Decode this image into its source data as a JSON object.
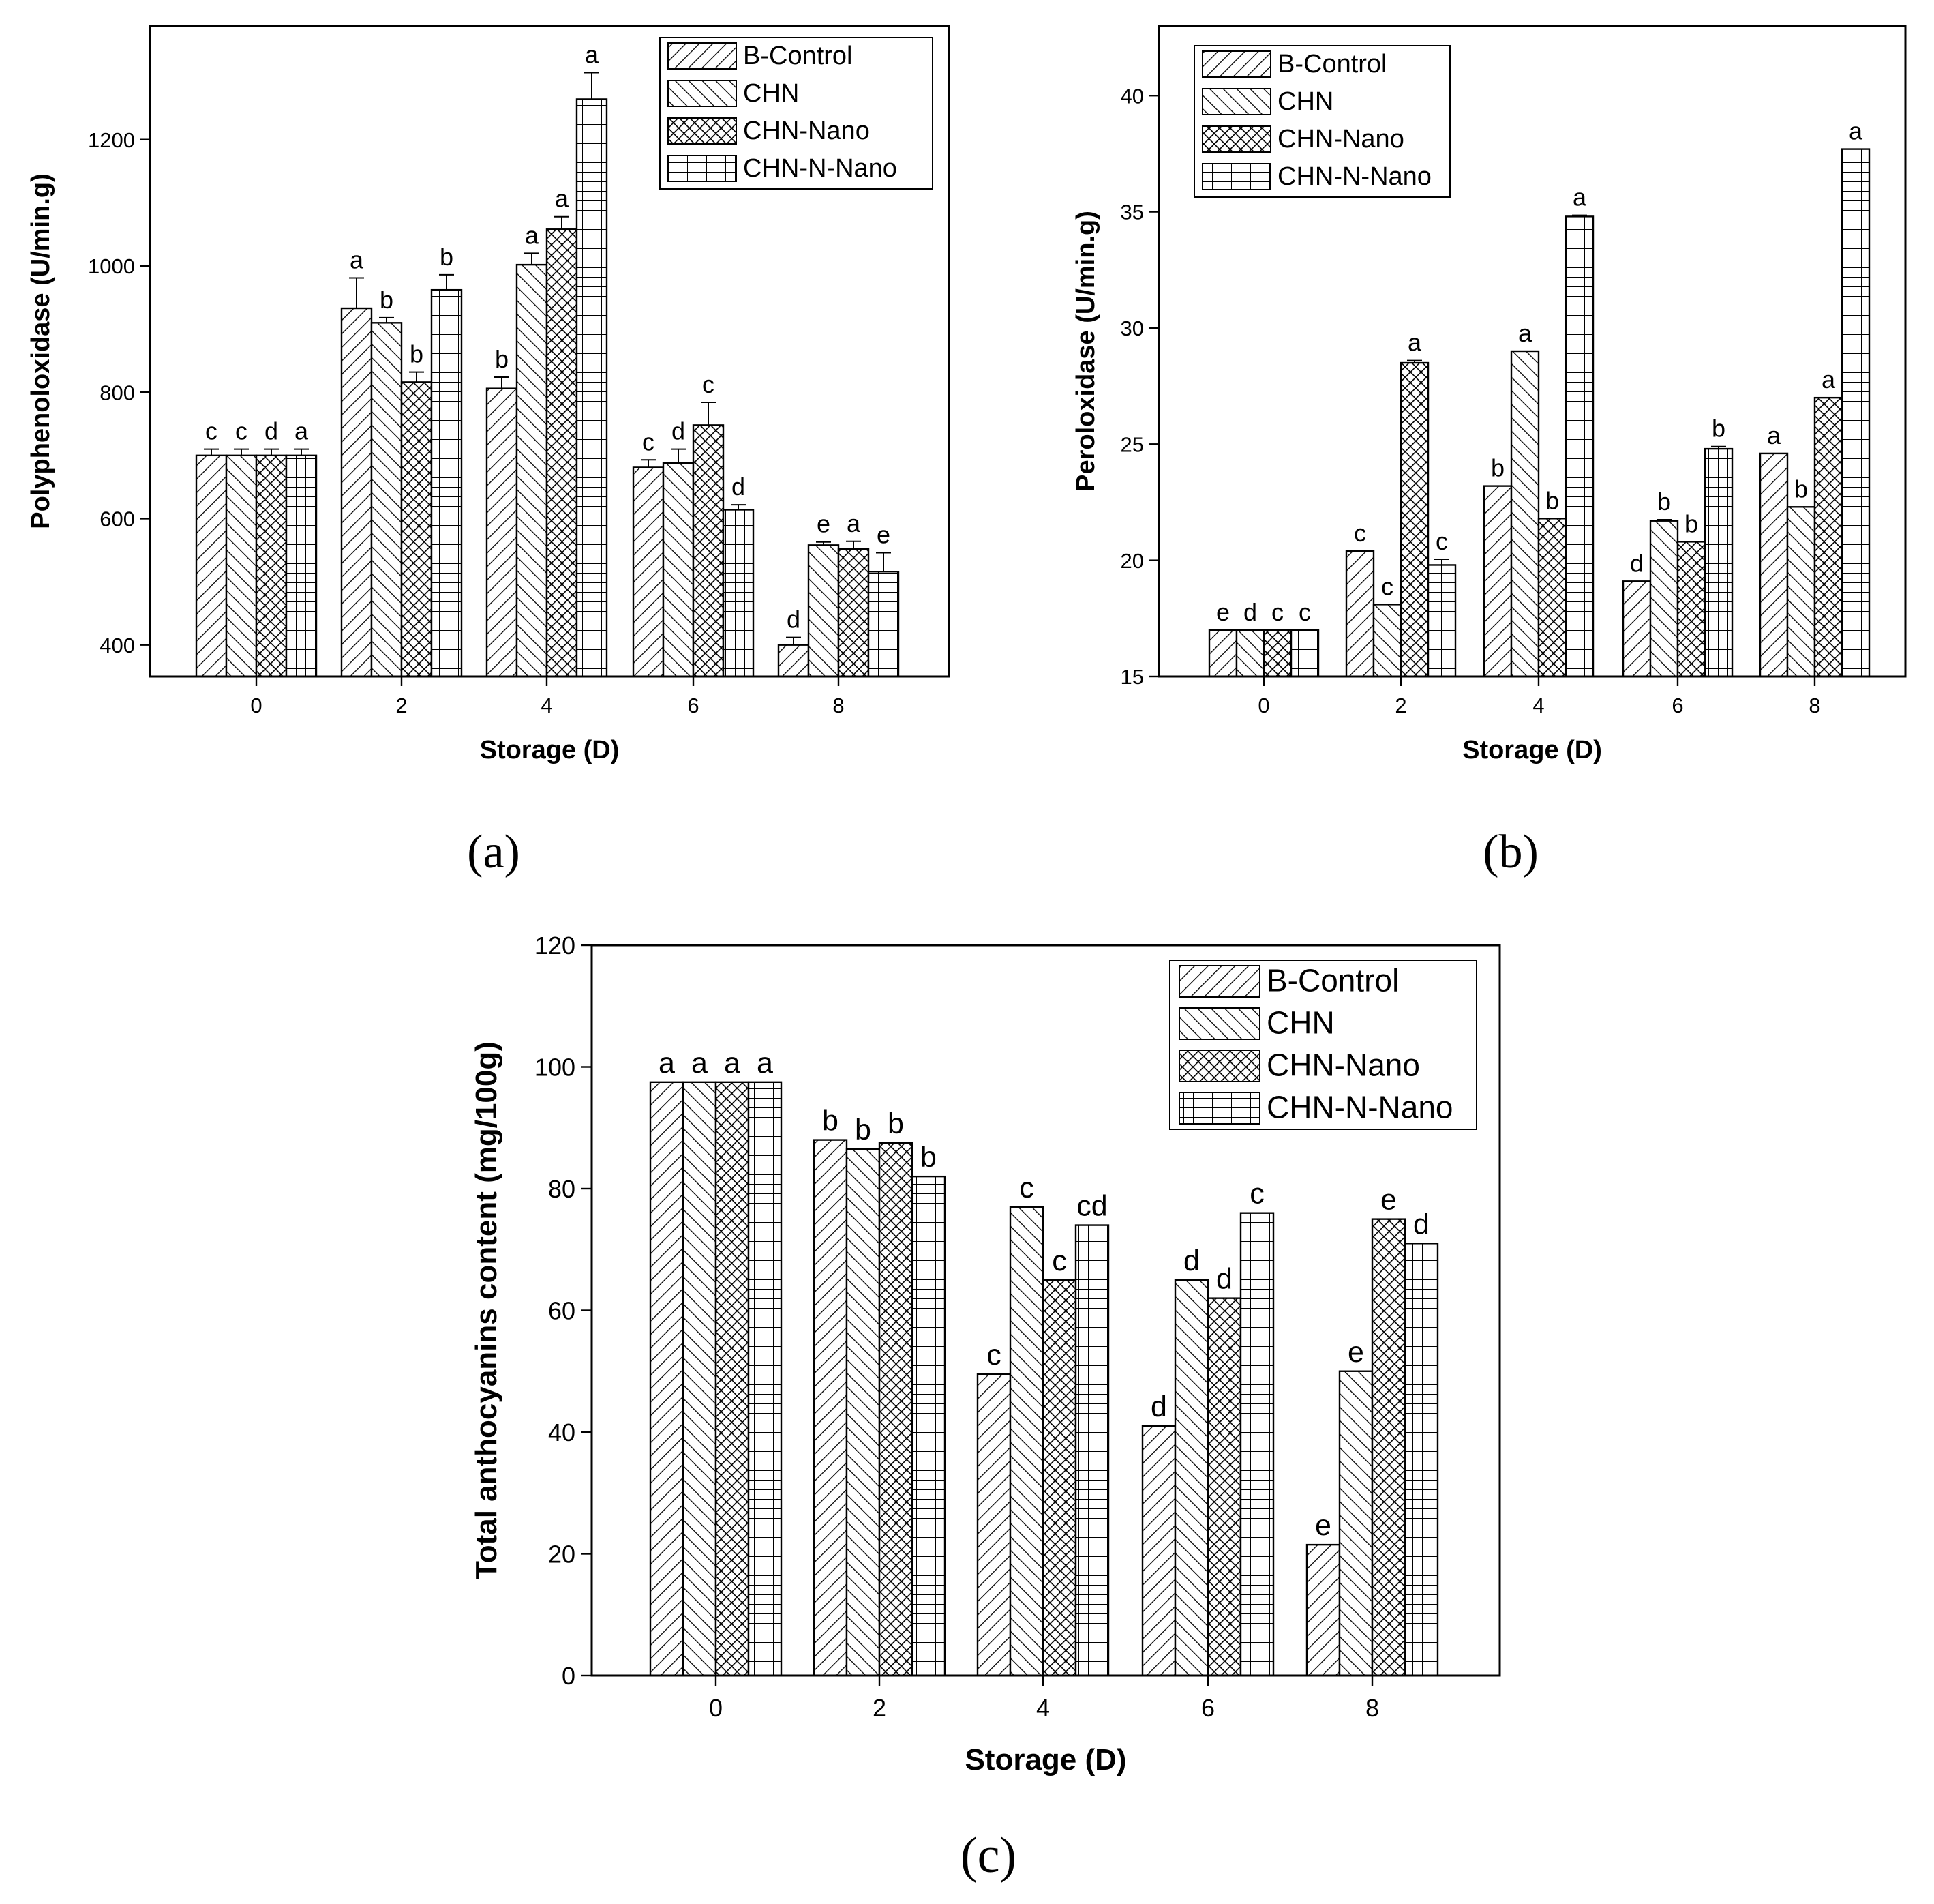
{
  "chart_data": [
    {
      "id": "a",
      "type": "bar",
      "panel_label": "(a)",
      "xlabel": "Storage (D)",
      "ylabel": "Polyphenoloxidase (U/min.g)",
      "categories": [
        "0",
        "2",
        "4",
        "6",
        "8"
      ],
      "ylim": [
        350,
        1380
      ],
      "yticks": [
        400,
        600,
        800,
        1000,
        1200
      ],
      "legend_position": "top-right",
      "series": [
        {
          "name": "B-Control",
          "pattern": "diag-right",
          "values": [
            700,
            933,
            806,
            681,
            400
          ],
          "errors": [
            10,
            48,
            18,
            12,
            12
          ],
          "labels": [
            "c",
            "a",
            "b",
            "c",
            "d"
          ]
        },
        {
          "name": "CHN",
          "pattern": "diag-left",
          "values": [
            700,
            910,
            1002,
            688,
            558
          ],
          "errors": [
            10,
            8,
            18,
            22,
            5
          ],
          "labels": [
            "c",
            "b",
            "a",
            "d",
            "e"
          ]
        },
        {
          "name": "CHN-Nano",
          "pattern": "crosshatch",
          "values": [
            700,
            816,
            1058,
            748,
            552
          ],
          "errors": [
            10,
            16,
            20,
            36,
            12
          ],
          "labels": [
            "d",
            "b",
            "a",
            "c",
            "a"
          ]
        },
        {
          "name": "CHN-N-Nano",
          "pattern": "grid",
          "values": [
            700,
            962,
            1264,
            614,
            516
          ],
          "errors": [
            10,
            24,
            42,
            8,
            30
          ],
          "labels": [
            "a",
            "b",
            "a",
            "d",
            "e"
          ]
        }
      ]
    },
    {
      "id": "b",
      "type": "bar",
      "panel_label": "(b)",
      "xlabel": "Storage (D)",
      "ylabel": "Peroloxidase (U/min.g)",
      "categories": [
        "0",
        "2",
        "4",
        "6",
        "8"
      ],
      "ylim": [
        15,
        43
      ],
      "yticks": [
        15,
        20,
        25,
        30,
        35,
        40
      ],
      "legend_position": "top-left",
      "series": [
        {
          "name": "B-Control",
          "pattern": "diag-right",
          "values": [
            17.0,
            20.4,
            23.2,
            19.1,
            24.6
          ],
          "errors": [
            0,
            0,
            0,
            0,
            0
          ],
          "labels": [
            "e",
            "c",
            "b",
            "d",
            "a"
          ]
        },
        {
          "name": "CHN",
          "pattern": "diag-left",
          "values": [
            17.0,
            18.1,
            29.0,
            21.7,
            22.3
          ],
          "errors": [
            0,
            0,
            0,
            0.05,
            0
          ],
          "labels": [
            "d",
            "c",
            "a",
            "b",
            "b"
          ]
        },
        {
          "name": "CHN-Nano",
          "pattern": "crosshatch",
          "values": [
            17.0,
            28.5,
            21.8,
            20.8,
            27.0
          ],
          "errors": [
            0,
            0.1,
            0,
            0,
            0
          ],
          "labels": [
            "c",
            "a",
            "b",
            "b",
            "a"
          ]
        },
        {
          "name": "CHN-N-Nano",
          "pattern": "grid",
          "values": [
            17.0,
            19.8,
            34.8,
            24.8,
            37.7
          ],
          "errors": [
            0,
            0.25,
            0.05,
            0.1,
            0
          ],
          "labels": [
            "c",
            "c",
            "a",
            "b",
            "a"
          ]
        }
      ]
    },
    {
      "id": "c",
      "type": "bar",
      "panel_label": "(c)",
      "xlabel": "Storage (D)",
      "ylabel": "Total anthocyanins content (mg/100g)",
      "categories": [
        "0",
        "2",
        "4",
        "6",
        "8"
      ],
      "ylim": [
        0,
        120
      ],
      "yticks": [
        0,
        20,
        40,
        60,
        80,
        100,
        120
      ],
      "legend_position": "top-right",
      "series": [
        {
          "name": "B-Control",
          "pattern": "diag-right",
          "values": [
            97.5,
            88,
            49.5,
            41,
            21.5
          ],
          "errors": [
            0,
            0,
            0,
            0,
            0
          ],
          "labels": [
            "a",
            "b",
            "c",
            "d",
            "e"
          ]
        },
        {
          "name": "CHN",
          "pattern": "diag-left",
          "values": [
            97.5,
            86.5,
            77,
            65,
            50
          ],
          "errors": [
            0,
            0,
            0,
            0,
            0
          ],
          "labels": [
            "a",
            "b",
            "c",
            "d",
            "e"
          ]
        },
        {
          "name": "CHN-Nano",
          "pattern": "crosshatch",
          "values": [
            97.5,
            87.5,
            65,
            62,
            75
          ],
          "errors": [
            0,
            0,
            0,
            0,
            0
          ],
          "labels": [
            "a",
            "b",
            "c",
            "d",
            "e"
          ]
        },
        {
          "name": "CHN-N-Nano",
          "pattern": "grid",
          "values": [
            97.5,
            82,
            74,
            76,
            71
          ],
          "errors": [
            0,
            0,
            0,
            0,
            0
          ],
          "labels": [
            "a",
            "b",
            "cd",
            "c",
            "d"
          ]
        }
      ]
    }
  ]
}
